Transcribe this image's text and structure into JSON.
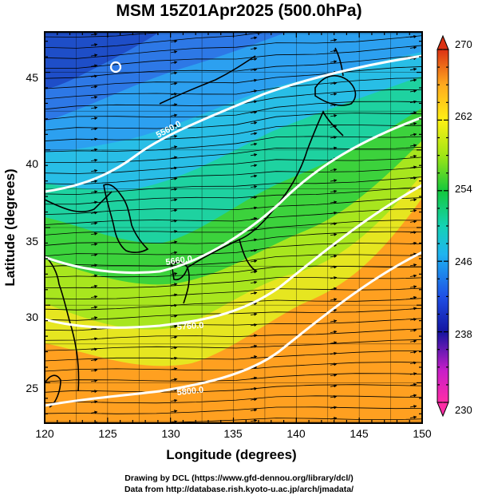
{
  "title": "MSM 15Z01Apr2025 (500.0hPa)",
  "axes": {
    "xlabel": "Longitude (degrees)",
    "ylabel": "Latitude  (degrees)",
    "xlim": [
      120,
      150
    ],
    "ylim": [
      22.4,
      47.6
    ],
    "xticks": [
      "120",
      "125",
      "130",
      "135",
      "140",
      "145",
      "150"
    ],
    "yticks": [
      "25",
      "30",
      "35",
      "40",
      "45"
    ]
  },
  "colorbar": {
    "range": [
      230,
      270
    ],
    "labels": [
      "270",
      "262",
      "254",
      "246",
      "238",
      "230"
    ],
    "colors": [
      "#ff2da6",
      "#c81ec8",
      "#1414a0",
      "#1e50e6",
      "#1eb4f0",
      "#14d2b4",
      "#14c83c",
      "#a0e614",
      "#fff014",
      "#ffaa1e",
      "#f05a1e",
      "#dc3214"
    ]
  },
  "contours": {
    "color": "#ffffff",
    "labels": [
      "5560.0",
      "5660.0",
      "5760.0",
      "5800.0"
    ]
  },
  "credits": {
    "line1": "Drawing by DCL (https://www.gfd-dennou.org/library/dcl/)",
    "line2": "Data from http://database.rish.kyoto-u.ac.jp/arch/jmadata/"
  }
}
